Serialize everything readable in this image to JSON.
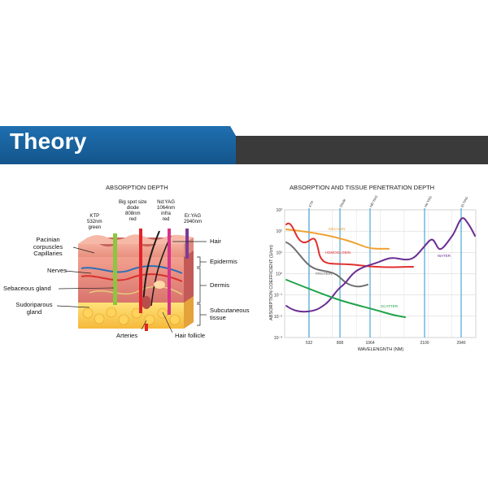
{
  "banner": {
    "title": "Theory"
  },
  "absorption_depth": {
    "title": "ABSORPTION DEPTH",
    "lasers": [
      {
        "name": "ktp",
        "lines": [
          "KTP",
          "532nm",
          "green"
        ],
        "color": "#8dc63f"
      },
      {
        "name": "diode",
        "lines": [
          "Big spot size",
          "diode",
          "808nm",
          "red"
        ],
        "color": "#e2232a"
      },
      {
        "name": "ndyag",
        "lines": [
          "Nd:YAG",
          "1064nm",
          "infra",
          "red"
        ],
        "color": "#d6338a"
      },
      {
        "name": "eryag",
        "lines": [
          "Er:YAG",
          "2940nm"
        ],
        "color": "#7b3b97"
      }
    ],
    "left_labels": [
      "Pacinian",
      "corpuscles",
      "Capillaries",
      "Nerves",
      "Sebaceous gland",
      "Sudoriparous",
      "gland"
    ],
    "right_labels": [
      "Hair",
      "Epidermis",
      "Dermis",
      "Subcutaneous",
      "tissue"
    ],
    "bottom_labels": [
      "Arteries",
      "Hair follicle"
    ]
  },
  "penetration": {
    "title": "ABSORPTION AND TISSUE PENETRATION DEPTH",
    "ylabel": "ABSORPTION COEFFICIENT (1/cm)",
    "xlabel": "WAVELENGNTH (NM)",
    "y_ticks": [
      "10³",
      "10²",
      "10¹",
      "10⁰",
      "10⁻¹",
      "10⁻²",
      "10⁻³"
    ],
    "x_ticks": [
      "532",
      "808",
      "1064",
      "2100",
      "2940"
    ],
    "laser_lines": [
      {
        "label": "KTP",
        "wavelength": 532
      },
      {
        "label": "Diode",
        "wavelength": 808
      },
      {
        "label": "ND:YAG",
        "wavelength": 1064
      },
      {
        "label": "Ho:YAG",
        "wavelength": 2100
      },
      {
        "label": "Er:YAG",
        "wavelength": 2940
      }
    ],
    "curves": [
      {
        "name": "MELANIN",
        "color": "#f0a234"
      },
      {
        "name": "HEMOGLOBIN",
        "color": "#e0312f"
      },
      {
        "name": "PROTEIN",
        "color": "#6d6e71"
      },
      {
        "name": "WATER",
        "color": "#6a2c91"
      },
      {
        "name": "SCATTER",
        "color": "#20a44a"
      }
    ]
  }
}
